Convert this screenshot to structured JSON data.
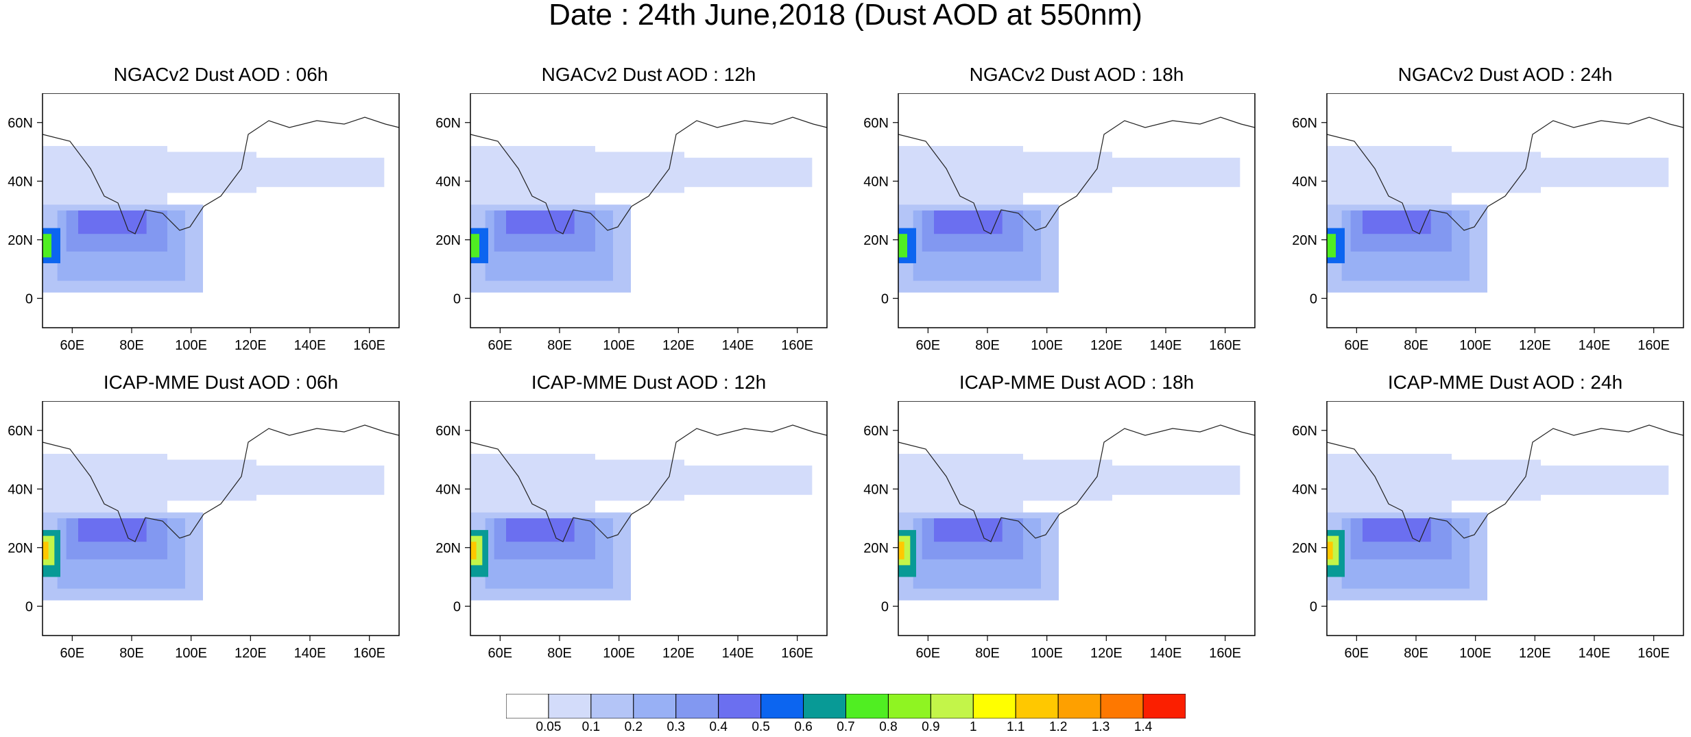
{
  "figure": {
    "title": "Date : 24th June,2018 (Dust AOD at 550nm)"
  },
  "panels": [
    {
      "title": "NGACv2 Dust AOD : 06h",
      "model": "NGACv2",
      "lead": "06h"
    },
    {
      "title": "NGACv2 Dust AOD : 12h",
      "model": "NGACv2",
      "lead": "12h"
    },
    {
      "title": "NGACv2 Dust AOD : 18h",
      "model": "NGACv2",
      "lead": "18h"
    },
    {
      "title": "NGACv2 Dust AOD : 24h",
      "model": "NGACv2",
      "lead": "24h"
    },
    {
      "title": "ICAP-MME Dust AOD : 06h",
      "model": "ICAP-MME",
      "lead": "06h"
    },
    {
      "title": "ICAP-MME Dust AOD : 12h",
      "model": "ICAP-MME",
      "lead": "12h"
    },
    {
      "title": "ICAP-MME Dust AOD : 18h",
      "model": "ICAP-MME",
      "lead": "18h"
    },
    {
      "title": "ICAP-MME Dust AOD : 24h",
      "model": "ICAP-MME",
      "lead": "24h"
    }
  ],
  "axes": {
    "lon_ticks": [
      "60E",
      "80E",
      "100E",
      "120E",
      "140E",
      "160E"
    ],
    "lat_ticks": [
      "60N",
      "40N",
      "20N",
      "0"
    ],
    "lon_range": [
      50,
      170
    ],
    "lat_range": [
      -10,
      70
    ]
  },
  "colorbar": {
    "labels": [
      "0.05",
      "0.1",
      "0.2",
      "0.3",
      "0.4",
      "0.5",
      "0.6",
      "0.7",
      "0.8",
      "0.9",
      "1",
      "1.1",
      "1.2",
      "1.3",
      "1.4"
    ],
    "colors": [
      "#ffffff",
      "#d3dcfa",
      "#b4c5f7",
      "#98b0f5",
      "#8298f1",
      "#6b6ff0",
      "#0c65f0",
      "#089a96",
      "#50ee22",
      "#8ff422",
      "#c3f549",
      "#ffff00",
      "#ffc800",
      "#fea000",
      "#fe7800",
      "#fb1f00"
    ]
  }
}
